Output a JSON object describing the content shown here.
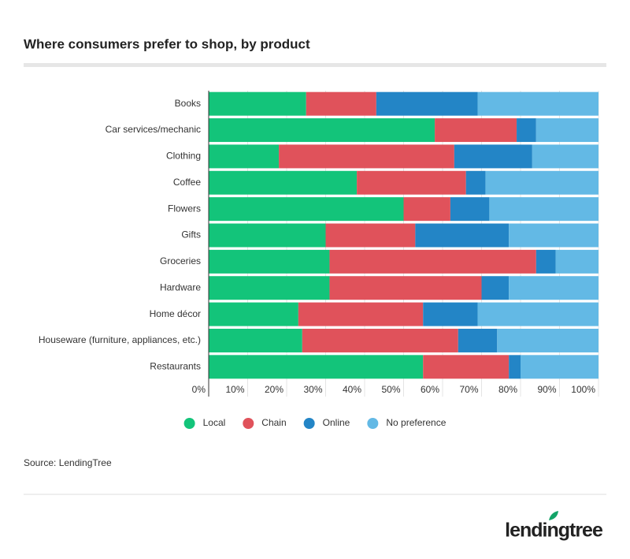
{
  "chart_data": {
    "type": "stacked-bar-horizontal",
    "title": "Where consumers prefer to shop, by product",
    "categories": [
      "Books",
      "Car services/mechanic",
      "Clothing",
      "Coffee",
      "Flowers",
      "Gifts",
      "Groceries",
      "Hardware",
      "Home décor",
      "Houseware (furniture, appliances, etc.)",
      "Restaurants"
    ],
    "series": [
      {
        "name": "Local",
        "color": "#13c47a",
        "values": [
          25,
          58,
          18,
          38,
          50,
          30,
          31,
          31,
          23,
          24,
          55
        ]
      },
      {
        "name": "Chain",
        "color": "#e0525b",
        "values": [
          18,
          21,
          45,
          28,
          12,
          23,
          53,
          39,
          32,
          40,
          22
        ]
      },
      {
        "name": "Online",
        "color": "#2385c6",
        "values": [
          26,
          5,
          20,
          5,
          10,
          24,
          5,
          7,
          14,
          10,
          3
        ]
      },
      {
        "name": "No preference",
        "color": "#63b9e5",
        "values": [
          31,
          16,
          17,
          29,
          28,
          23,
          11,
          23,
          31,
          26,
          20
        ]
      }
    ],
    "xlim": [
      0,
      100
    ],
    "xticks": [
      {
        "value": 0,
        "label": "0%"
      },
      {
        "value": 10,
        "label": "10%"
      },
      {
        "value": 20,
        "label": "20%"
      },
      {
        "value": 30,
        "label": "30%"
      },
      {
        "value": 40,
        "label": "40%"
      },
      {
        "value": 50,
        "label": "50%"
      },
      {
        "value": 60,
        "label": "60%"
      },
      {
        "value": 70,
        "label": "70%"
      },
      {
        "value": 80,
        "label": "80%"
      },
      {
        "value": 90,
        "label": "90%"
      },
      {
        "value": 100,
        "label": "100%"
      }
    ],
    "grid": true,
    "legend": "bottom",
    "source": "Source: LendingTree"
  },
  "logo": "lendingtree"
}
